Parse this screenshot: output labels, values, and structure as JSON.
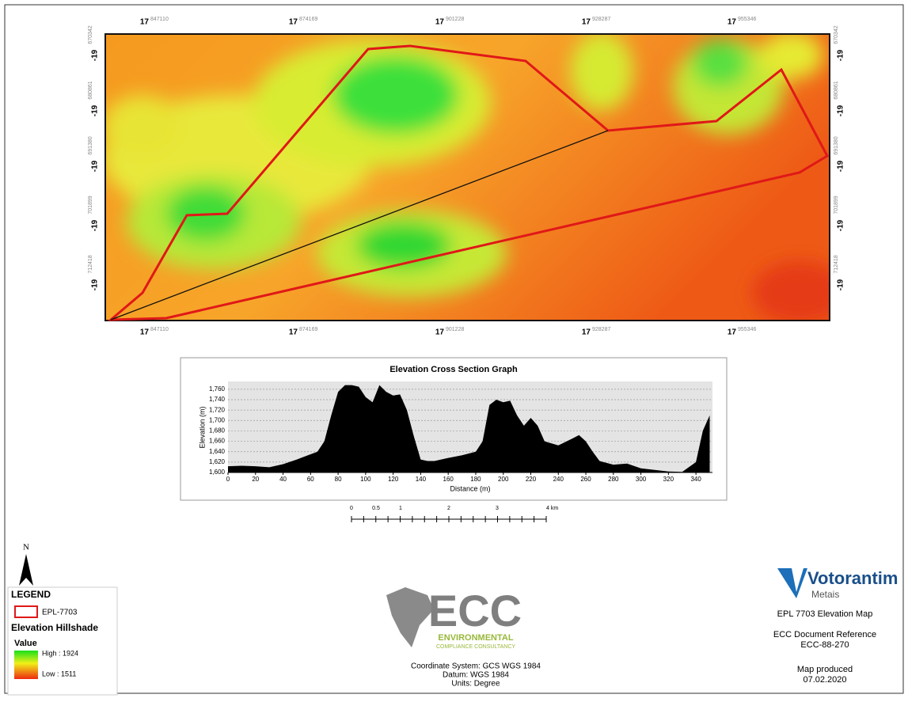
{
  "map": {
    "top_coords": {
      "prefix": "17",
      "values": [
        "847110",
        "874169",
        "901228",
        "928287",
        "955346"
      ]
    },
    "side_coords": {
      "prefix": "-19",
      "values": [
        "670342",
        "680861",
        "691380",
        "701899",
        "712418"
      ]
    }
  },
  "elevation_graph": {
    "title": "Elevation Cross Section Graph",
    "x_label": "Distance (m)",
    "y_label": "Elevation (m)",
    "xlim": [
      0,
      352
    ],
    "ylim": [
      1600,
      1775
    ],
    "xticks": [
      0,
      20,
      40,
      60,
      80,
      100,
      120,
      140,
      160,
      180,
      200,
      220,
      240,
      260,
      280,
      300,
      320,
      340
    ],
    "yticks": [
      {
        "value": 1600,
        "label": "1,600"
      },
      {
        "value": 1620,
        "label": "1,620"
      },
      {
        "value": 1640,
        "label": "1,640"
      },
      {
        "value": 1660,
        "label": "1,660"
      },
      {
        "value": 1680,
        "label": "1,680"
      },
      {
        "value": 1700,
        "label": "1,700"
      },
      {
        "value": 1720,
        "label": "1,720"
      },
      {
        "value": 1740,
        "label": "1,740"
      },
      {
        "value": 1760,
        "label": "1,760"
      }
    ],
    "x": [
      0,
      10,
      20,
      30,
      40,
      50,
      60,
      65,
      70,
      75,
      80,
      85,
      90,
      95,
      100,
      105,
      110,
      115,
      120,
      125,
      130,
      135,
      140,
      145,
      150,
      160,
      170,
      180,
      185,
      190,
      195,
      200,
      205,
      210,
      215,
      220,
      225,
      230,
      240,
      250,
      255,
      260,
      265,
      270,
      280,
      290,
      300,
      310,
      320,
      330,
      340,
      345,
      350
    ],
    "values": [
      1612,
      1613,
      1612,
      1610,
      1616,
      1625,
      1635,
      1640,
      1660,
      1710,
      1755,
      1768,
      1768,
      1765,
      1745,
      1735,
      1768,
      1755,
      1748,
      1750,
      1720,
      1670,
      1625,
      1622,
      1622,
      1628,
      1633,
      1640,
      1660,
      1730,
      1740,
      1735,
      1738,
      1710,
      1690,
      1705,
      1690,
      1660,
      1652,
      1665,
      1672,
      1660,
      1640,
      1622,
      1615,
      1617,
      1608,
      1605,
      1602,
      1601,
      1620,
      1680,
      1710
    ]
  },
  "scale_bar": {
    "labels": [
      "0",
      "0.5",
      "1",
      "2",
      "3",
      "4 km"
    ]
  },
  "north": "N",
  "legend": {
    "title": "LEGEND",
    "boundary": "EPL-7703",
    "layer": "Elevation Hillshade",
    "value": "Value",
    "high": "High : 1924",
    "low": "Low : 1511"
  },
  "ecc": {
    "name": "ECC",
    "line1": "ENVIRONMENTAL",
    "line2": "COMPLIANCE CONSULTANCY"
  },
  "coordinates": {
    "system": "Coordinate System: GCS WGS 1984",
    "datum": "Datum: WGS 1984",
    "units": "Units: Degree"
  },
  "info": {
    "company": "Votorantim",
    "sub": "Metais",
    "map_title": "EPL 7703 Elevation Map",
    "ref_label": "ECC Document Reference",
    "ref": "ECC-88-270",
    "produced_label": "Map produced",
    "date": "07.02.2020"
  }
}
